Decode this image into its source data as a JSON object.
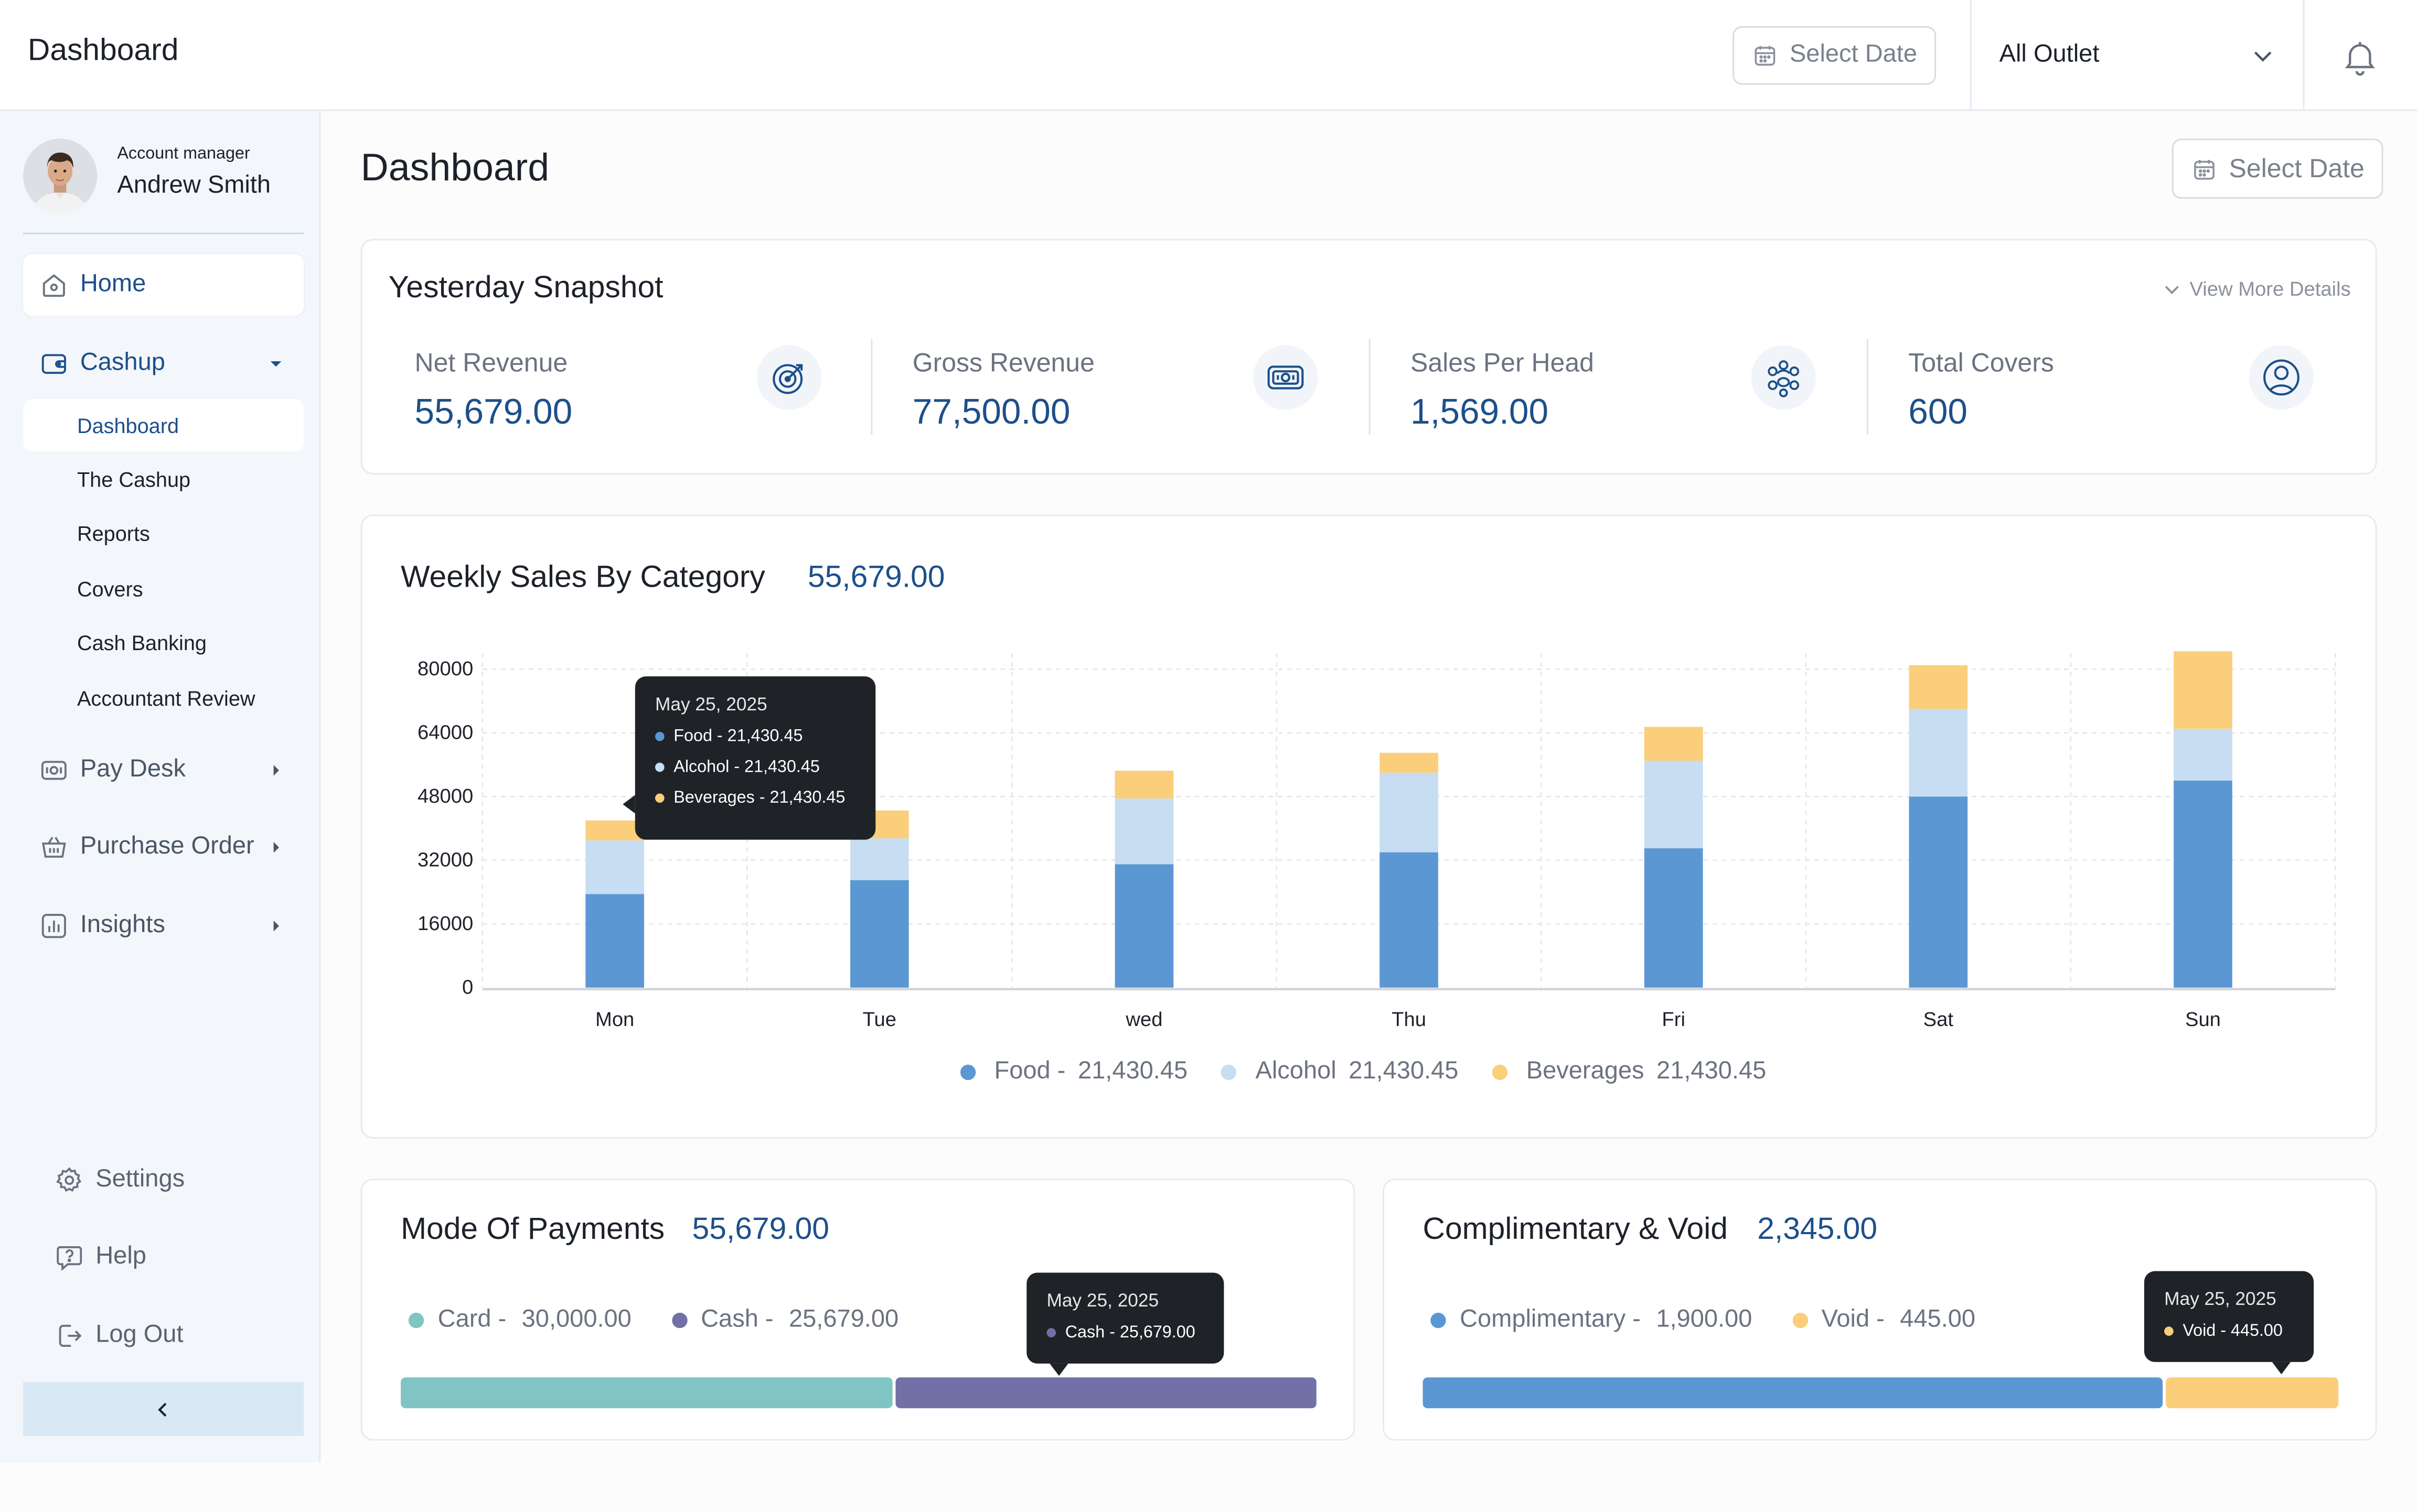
{
  "topbar": {
    "title": "Dashboard",
    "select_date": "Select Date",
    "outlet": "All Outlet"
  },
  "user": {
    "role": "Account manager",
    "name": "Andrew Smith"
  },
  "nav": {
    "home": "Home",
    "cashup": "Cashup",
    "cashup_sub": [
      "Dashboard",
      "The Cashup",
      "Reports",
      "Covers",
      "Cash Banking",
      "Accountant Review"
    ],
    "pay_desk": "Pay Desk",
    "purchase_order": "Purchase Order",
    "insights": "Insights",
    "settings": "Settings",
    "help": "Help",
    "logout": "Log Out"
  },
  "main": {
    "title": "Dashboard",
    "select_date": "Select Date"
  },
  "snapshot": {
    "title": "Yesterday Snapshot",
    "view_more": "View More Details",
    "metrics": [
      {
        "label": "Net Revenue",
        "value": "55,679.00",
        "icon": "target-arrow-icon"
      },
      {
        "label": "Gross Revenue",
        "value": "77,500.00",
        "icon": "cash-note-icon"
      },
      {
        "label": "Sales Per Head",
        "value": "1,569.00",
        "icon": "people-group-icon"
      },
      {
        "label": "Total Covers",
        "value": "600",
        "icon": "user-circle-icon"
      }
    ]
  },
  "weekly": {
    "title": "Weekly Sales By Category",
    "total": "55,679.00",
    "legend": [
      {
        "name": "Food -",
        "value": "21,430.45"
      },
      {
        "name": "Alcohol",
        "value": "21,430.45"
      },
      {
        "name": "Beverages",
        "value": "21,430.45"
      }
    ],
    "tooltip": {
      "date": "May 25, 2025",
      "rows": [
        "Food - 21,430.45",
        "Alcohol - 21,430.45",
        "Beverages - 21,430.45"
      ]
    }
  },
  "chart_data": {
    "type": "bar",
    "stacked": true,
    "title": "Weekly Sales By Category",
    "categories": [
      "Mon",
      "Tue",
      "wed",
      "Thu",
      "Fri",
      "Sat",
      "Sun"
    ],
    "y_ticks": [
      "80000",
      "64000",
      "48000",
      "32000",
      "16000",
      "0"
    ],
    "ylim": [
      0,
      84000
    ],
    "series": [
      {
        "name": "Food",
        "color": "#5b97d3",
        "values": [
          23500,
          27000,
          31000,
          34000,
          35000,
          48000,
          52000
        ]
      },
      {
        "name": "Alcohol",
        "color": "#c7ddf2",
        "values": [
          13500,
          10500,
          16500,
          20000,
          22000,
          22000,
          13000
        ]
      },
      {
        "name": "Beverages",
        "color": "#fbce7c",
        "values": [
          5000,
          7000,
          7000,
          5000,
          8500,
          11000,
          19500
        ]
      }
    ],
    "grid": true
  },
  "payments": {
    "title": "Mode Of Payments",
    "total": "55,679.00",
    "items": [
      {
        "name": "Card -",
        "value": "30,000.00",
        "share": 0.539,
        "color": "#80c4c3"
      },
      {
        "name": "Cash -",
        "value": "25,679.00",
        "share": 0.461,
        "color": "#7171a7"
      }
    ],
    "tooltip": {
      "date": "May 25, 2025",
      "row": "Cash - 25,679.00"
    }
  },
  "comp_void": {
    "title": "Complimentary & Void",
    "total": "2,345.00",
    "items": [
      {
        "name": "Complimentary -",
        "value": "1,900.00",
        "share": 0.81,
        "color": "#5b97d3"
      },
      {
        "name": "Void -",
        "value": "445.00",
        "share": 0.19,
        "color": "#fbce7c"
      }
    ],
    "tooltip": {
      "date": "May 25, 2025",
      "row": "Void - 445.00"
    }
  }
}
